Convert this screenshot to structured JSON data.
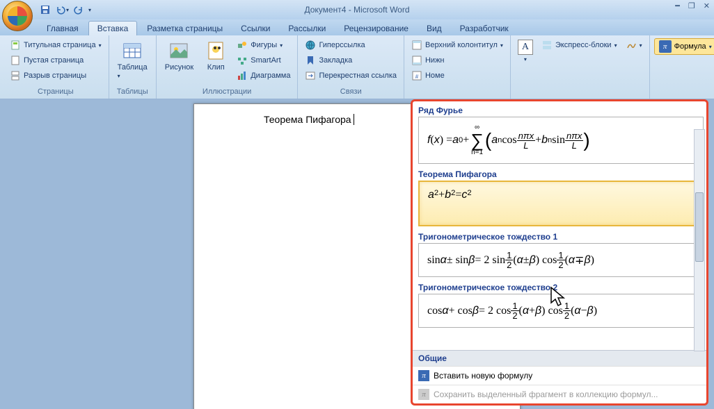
{
  "title": "Документ4 - Microsoft Word",
  "qat": {
    "save": "save-icon",
    "undo": "undo-icon",
    "redo": "redo-icon"
  },
  "tabs": [
    "Главная",
    "Вставка",
    "Разметка страницы",
    "Ссылки",
    "Рассылки",
    "Рецензирование",
    "Вид",
    "Разработчик"
  ],
  "active_tab": 1,
  "ribbon": {
    "pages": {
      "label": "Страницы",
      "cover": "Титульная страница",
      "blank": "Пустая страница",
      "break": "Разрыв страницы"
    },
    "tables": {
      "label": "Таблицы",
      "table": "Таблица"
    },
    "illus": {
      "label": "Иллюстрации",
      "picture": "Рисунок",
      "clip": "Клип",
      "shapes": "Фигуры",
      "smartart": "SmartArt",
      "chart": "Диаграмма"
    },
    "links": {
      "label": "Связи",
      "hyperlink": "Гиперссылка",
      "bookmark": "Закладка",
      "crossref": "Перекрестная ссылка"
    },
    "header": {
      "top": "Верхний колонтитул",
      "bottom": "Нижн",
      "num": "Номе"
    },
    "text": {
      "textbox": "A",
      "express": "Экспресс-блоки"
    },
    "symbols": {
      "equation": "Формула"
    }
  },
  "doc_text": "Теорема Пифагора",
  "gallery": {
    "items": [
      {
        "title": "Ряд Фурье",
        "eq_html": "<i>f</i>(<i>x</i>) = <i>a</i><sub>0</sub> + <span class='sum'><span>∞</span><span class='sigma'>∑</span><span>n=1</span></span> <span class='paren'>(</span><i>a</i><sub>n</sub> cos <span class='frac'><span class='num'><i>nπx</i></span><span class='den'><i>L</i></span></span> + <i>b</i><sub>n</sub> sin <span class='frac'><span class='num'><i>nπx</i></span><span class='den'><i>L</i></span></span><span class='paren'>)</span>",
        "hover": false
      },
      {
        "title": "Теорема Пифагора",
        "eq_html": "<i>a</i><sup>2</sup> + <i>b</i><sup>2</sup> = <i>c</i><sup>2</sup>",
        "hover": true
      },
      {
        "title": "Тригонометрическое тождество 1",
        "eq_html": "sin <i>α</i> ± sin <i>β</i> = 2 sin <span class='frac'><span class='num'>1</span><span class='den'>2</span></span>(<i>α</i> ± <i>β</i>)  cos <span class='frac'><span class='num'>1</span><span class='den'>2</span></span>(<i>α</i> ∓ <i>β</i>)",
        "hover": false
      },
      {
        "title": "Тригонометрическое тождество 2",
        "eq_html": "cos <i>α</i> + cos <i>β</i> = 2 cos <span class='frac'><span class='num'>1</span><span class='den'>2</span></span>(<i>α</i> + <i>β</i>)  cos <span class='frac'><span class='num'>1</span><span class='den'>2</span></span>(<i>α</i> − <i>β</i>)",
        "hover": false
      }
    ],
    "general_label": "Общие",
    "insert_new": "Вставить новую формулу",
    "save_sel": "Сохранить выделенный фрагмент в коллекцию формул..."
  },
  "colors": {
    "accent_border": "#e8452e",
    "highlight": "#fde69a"
  }
}
